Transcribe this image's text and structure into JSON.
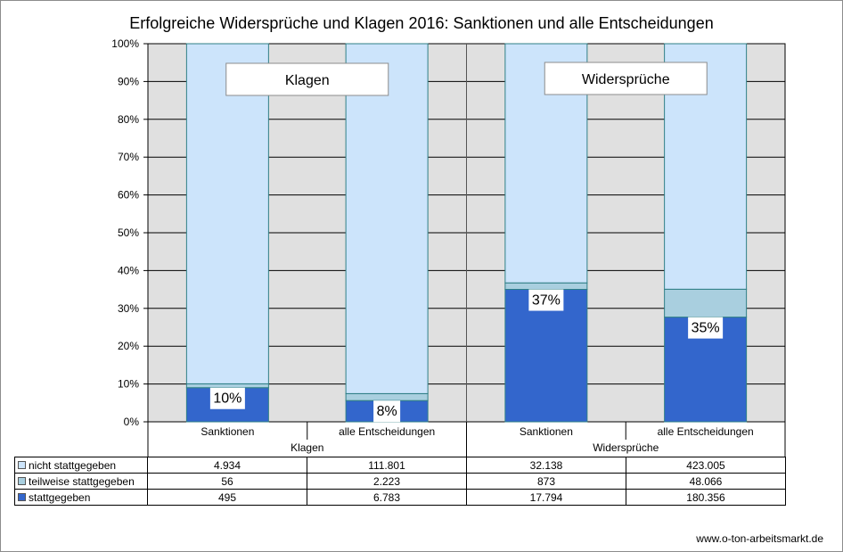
{
  "chart_data": {
    "type": "bar",
    "stacked": "percent",
    "title": "Erfolgreiche Widersprüche und Klagen 2016: Sanktionen und alle Entscheidungen",
    "groups": [
      {
        "name": "Klagen",
        "categories": [
          "Sanktionen",
          "alle Entscheidungen"
        ]
      },
      {
        "name": "Widersprüche",
        "categories": [
          "Sanktionen",
          "alle Entscheidungen"
        ]
      }
    ],
    "categories": [
      "Sanktionen",
      "alle Entscheidungen",
      "Sanktionen",
      "alle Entscheidungen"
    ],
    "series": [
      {
        "name": "stattgegeben",
        "values": [
          495,
          6783,
          17794,
          180356
        ],
        "labels": [
          "495",
          "6.783",
          "17.794",
          "180.356"
        ],
        "color": "#3366cc"
      },
      {
        "name": "teilweise stattgegeben",
        "values": [
          56,
          2223,
          873,
          48066
        ],
        "labels": [
          "56",
          "2.223",
          "873",
          "48.066"
        ],
        "color": "#a9cfdf"
      },
      {
        "name": "nicht stattgegeben",
        "values": [
          4934,
          111801,
          32138,
          423005
        ],
        "labels": [
          "4.934",
          "111.801",
          "32.138",
          "423.005"
        ],
        "color": "#cce4fb"
      }
    ],
    "data_labels": [
      "10%",
      "8%",
      "37%",
      "35%"
    ],
    "y_ticks": [
      "0%",
      "10%",
      "20%",
      "30%",
      "40%",
      "50%",
      "60%",
      "70%",
      "80%",
      "90%",
      "100%"
    ],
    "ylim": [
      0,
      100
    ],
    "annotations": [
      "Klagen",
      "Widersprüche"
    ],
    "grid": true,
    "plot_background": "#e0e0e0",
    "legend": "table"
  },
  "footer": {
    "source": "www.o-ton-arbeitsmarkt.de"
  }
}
